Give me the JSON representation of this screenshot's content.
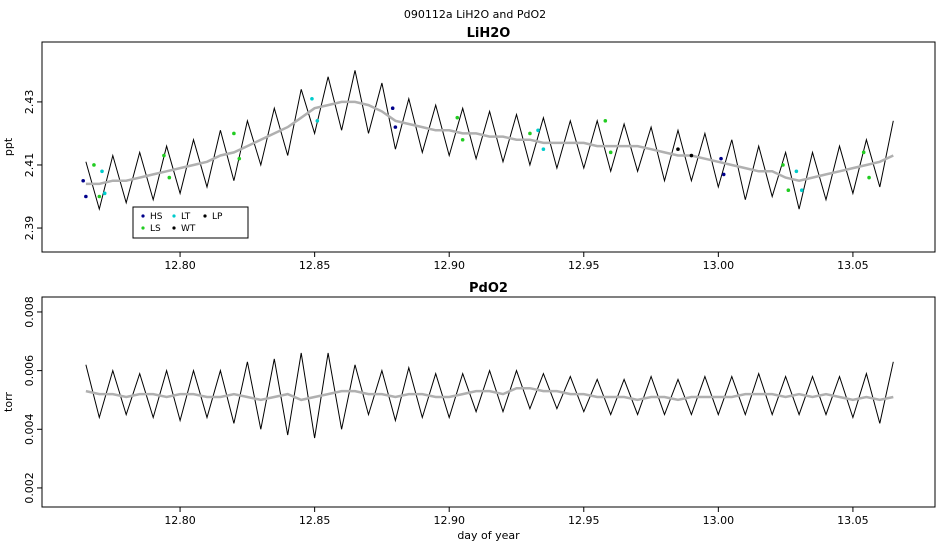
{
  "title": "090112a   LiH2O and PdO2",
  "chart_data": [
    {
      "type": "line",
      "title": "LiH2O",
      "ylabel": "ppt",
      "xlim": [
        12.7487,
        13.0805
      ],
      "ylim": [
        2.3824,
        2.449
      ],
      "xticks": [
        {
          "value": 12.8,
          "label": "12.80"
        },
        {
          "value": 12.85,
          "label": "12.85"
        },
        {
          "value": 12.9,
          "label": "12.90"
        },
        {
          "value": 12.95,
          "label": "12.95"
        },
        {
          "value": 13.0,
          "label": "13.00"
        },
        {
          "value": 13.05,
          "label": "13.05"
        }
      ],
      "yticks": [
        2.39,
        2.41,
        2.43
      ],
      "legend": "bottomleft",
      "x": [
        12.765,
        12.77,
        12.775,
        12.78,
        12.785,
        12.79,
        12.795,
        12.8,
        12.805,
        12.81,
        12.815,
        12.82,
        12.825,
        12.83,
        12.835,
        12.84,
        12.845,
        12.85,
        12.855,
        12.86,
        12.865,
        12.87,
        12.875,
        12.88,
        12.885,
        12.89,
        12.895,
        12.9,
        12.905,
        12.91,
        12.915,
        12.92,
        12.925,
        12.93,
        12.935,
        12.94,
        12.945,
        12.95,
        12.955,
        12.96,
        12.965,
        12.97,
        12.975,
        12.98,
        12.985,
        12.99,
        12.995,
        13.0,
        13.005,
        13.01,
        13.015,
        13.02,
        13.025,
        13.03,
        13.035,
        13.04,
        13.045,
        13.05,
        13.055,
        13.06,
        13.065
      ],
      "series": [
        {
          "color": "#000000",
          "width": 1,
          "values": [
            2.411,
            2.396,
            2.413,
            2.398,
            2.414,
            2.399,
            2.416,
            2.401,
            2.418,
            2.403,
            2.421,
            2.405,
            2.424,
            2.41,
            2.428,
            2.413,
            2.434,
            2.42,
            2.438,
            2.421,
            2.44,
            2.42,
            2.436,
            2.415,
            2.431,
            2.414,
            2.429,
            2.413,
            2.428,
            2.412,
            2.427,
            2.411,
            2.426,
            2.41,
            2.425,
            2.409,
            2.424,
            2.409,
            2.424,
            2.408,
            2.423,
            2.408,
            2.422,
            2.405,
            2.421,
            2.405,
            2.42,
            2.403,
            2.418,
            2.399,
            2.416,
            2.4,
            2.414,
            2.396,
            2.414,
            2.399,
            2.416,
            2.401,
            2.418,
            2.403,
            2.424
          ]
        },
        {
          "color": "#b0b0b0",
          "width": 2.5,
          "values": [
            2.404,
            2.404,
            2.405,
            2.405,
            2.406,
            2.407,
            2.408,
            2.409,
            2.41,
            2.411,
            2.413,
            2.414,
            2.416,
            2.418,
            2.42,
            2.422,
            2.425,
            2.428,
            2.429,
            2.43,
            2.43,
            2.429,
            2.427,
            2.424,
            2.423,
            2.422,
            2.421,
            2.421,
            2.42,
            2.42,
            2.419,
            2.419,
            2.418,
            2.418,
            2.417,
            2.417,
            2.417,
            2.417,
            2.416,
            2.416,
            2.416,
            2.416,
            2.415,
            2.414,
            2.413,
            2.413,
            2.412,
            2.411,
            2.41,
            2.409,
            2.408,
            2.408,
            2.406,
            2.405,
            2.406,
            2.407,
            2.408,
            2.409,
            2.41,
            2.411,
            2.413
          ]
        },
        {
          "name": "HS",
          "color": "#00008b",
          "mode": "points",
          "x": [
            12.764,
            12.765,
            12.879,
            12.88,
            13.001,
            13.002
          ],
          "values": [
            2.405,
            2.4,
            2.428,
            2.422,
            2.412,
            2.407
          ]
        },
        {
          "name": "LT",
          "color": "#00cccc",
          "mode": "points",
          "x": [
            12.771,
            12.772,
            12.849,
            12.851,
            12.933,
            12.935,
            13.029,
            13.031
          ],
          "values": [
            2.408,
            2.401,
            2.431,
            2.424,
            2.421,
            2.415,
            2.408,
            2.402
          ]
        },
        {
          "name": "LP",
          "color": "#000000",
          "mode": "points",
          "x": [
            12.985
          ],
          "values": [
            2.415
          ]
        },
        {
          "name": "LS",
          "color": "#22cc22",
          "mode": "points",
          "x": [
            12.768,
            12.77,
            12.794,
            12.796,
            12.82,
            12.822,
            12.903,
            12.905,
            12.93,
            12.958,
            12.96,
            13.024,
            13.026,
            13.054,
            13.056
          ],
          "values": [
            2.41,
            2.4,
            2.413,
            2.406,
            2.42,
            2.412,
            2.425,
            2.418,
            2.42,
            2.424,
            2.414,
            2.41,
            2.402,
            2.414,
            2.406
          ]
        },
        {
          "name": "WT",
          "color": "#000000",
          "mode": "points",
          "x": [
            12.99
          ],
          "values": [
            2.413
          ]
        }
      ]
    },
    {
      "type": "line",
      "title": "PdO2",
      "ylabel": "torr",
      "xlabel": "day of year",
      "xlim": [
        12.7487,
        13.0805
      ],
      "ylim": [
        0.00135,
        0.00851
      ],
      "xticks": [
        {
          "value": 12.8,
          "label": "12.80"
        },
        {
          "value": 12.85,
          "label": "12.85"
        },
        {
          "value": 12.9,
          "label": "12.90"
        },
        {
          "value": 12.95,
          "label": "12.95"
        },
        {
          "value": 13.0,
          "label": "13.00"
        },
        {
          "value": 13.05,
          "label": "13.05"
        }
      ],
      "yticks": [
        0.002,
        0.004,
        0.006,
        0.008
      ],
      "x": [
        12.765,
        12.77,
        12.775,
        12.78,
        12.785,
        12.79,
        12.795,
        12.8,
        12.805,
        12.81,
        12.815,
        12.82,
        12.825,
        12.83,
        12.835,
        12.84,
        12.845,
        12.85,
        12.855,
        12.86,
        12.865,
        12.87,
        12.875,
        12.88,
        12.885,
        12.89,
        12.895,
        12.9,
        12.905,
        12.91,
        12.915,
        12.92,
        12.925,
        12.93,
        12.935,
        12.94,
        12.945,
        12.95,
        12.955,
        12.96,
        12.965,
        12.97,
        12.975,
        12.98,
        12.985,
        12.99,
        12.995,
        13.0,
        13.005,
        13.01,
        13.015,
        13.02,
        13.025,
        13.03,
        13.035,
        13.04,
        13.045,
        13.05,
        13.055,
        13.06,
        13.065
      ],
      "series": [
        {
          "color": "#000000",
          "width": 1,
          "values": [
            0.0062,
            0.0044,
            0.006,
            0.0045,
            0.0059,
            0.0044,
            0.006,
            0.0043,
            0.006,
            0.0044,
            0.006,
            0.0042,
            0.0063,
            0.004,
            0.0064,
            0.0038,
            0.0066,
            0.0037,
            0.0066,
            0.004,
            0.0062,
            0.0045,
            0.006,
            0.0043,
            0.0061,
            0.0044,
            0.0059,
            0.0044,
            0.0059,
            0.0046,
            0.006,
            0.0046,
            0.006,
            0.0047,
            0.0059,
            0.0047,
            0.0058,
            0.0046,
            0.0057,
            0.0045,
            0.0057,
            0.0045,
            0.0058,
            0.0045,
            0.0057,
            0.0045,
            0.0058,
            0.0045,
            0.0058,
            0.0045,
            0.0059,
            0.0045,
            0.0058,
            0.0045,
            0.0058,
            0.0045,
            0.0058,
            0.0044,
            0.0059,
            0.0042,
            0.0063
          ]
        },
        {
          "color": "#b0b0b0",
          "width": 2.5,
          "values": [
            0.0053,
            0.0052,
            0.0052,
            0.0051,
            0.0052,
            0.0052,
            0.0051,
            0.0052,
            0.0052,
            0.0051,
            0.0051,
            0.0052,
            0.0051,
            0.005,
            0.0051,
            0.0052,
            0.005,
            0.0051,
            0.0052,
            0.0053,
            0.0053,
            0.0052,
            0.0052,
            0.0051,
            0.0052,
            0.0052,
            0.0051,
            0.0051,
            0.0052,
            0.0053,
            0.0053,
            0.0052,
            0.0054,
            0.0054,
            0.0053,
            0.0053,
            0.0052,
            0.0052,
            0.0051,
            0.0051,
            0.0051,
            0.005,
            0.0051,
            0.0051,
            0.005,
            0.0051,
            0.0051,
            0.0051,
            0.0051,
            0.0052,
            0.0052,
            0.0052,
            0.0051,
            0.0052,
            0.0051,
            0.0052,
            0.0051,
            0.005,
            0.0051,
            0.005,
            0.0051
          ]
        }
      ]
    }
  ]
}
